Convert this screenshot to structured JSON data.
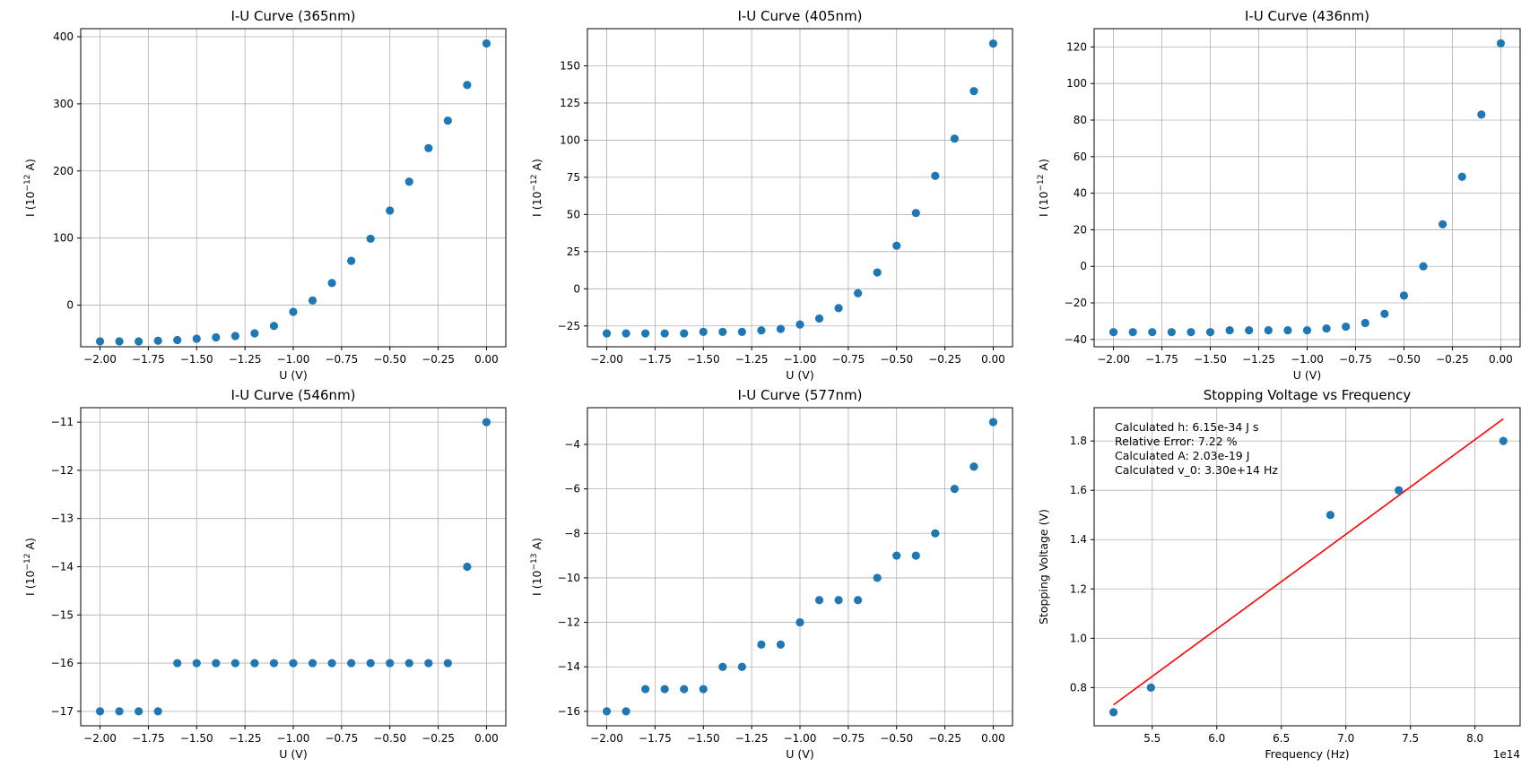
{
  "colors": {
    "points": "#1f77b4",
    "fit_line": "#ff0000",
    "grid": "#b0b0b0",
    "axes": "#000000"
  },
  "chart_data": [
    {
      "type": "scatter",
      "title": "I-U Curve (365nm)",
      "xlabel": "U (V)",
      "ylabel_base": "I (10",
      "ylabel_exp": "−12",
      "ylabel_tail": " A)",
      "xlim": [
        -2.1,
        0.1
      ],
      "ylim": [
        -62,
        412
      ],
      "xticks": [
        -2.0,
        -1.75,
        -1.5,
        -1.25,
        -1.0,
        -0.75,
        -0.5,
        -0.25,
        0.0
      ],
      "xtick_labels": [
        "−2.00",
        "−1.75",
        "−1.50",
        "−1.25",
        "−1.00",
        "−0.75",
        "−0.50",
        "−0.25",
        "0.00"
      ],
      "yticks": [
        0,
        100,
        200,
        300,
        400
      ],
      "ytick_labels": [
        "0",
        "100",
        "200",
        "300",
        "400"
      ],
      "grid": true,
      "x": [
        -2.0,
        -1.9,
        -1.8,
        -1.7,
        -1.6,
        -1.5,
        -1.4,
        -1.3,
        -1.2,
        -1.1,
        -1.0,
        -0.9,
        -0.8,
        -0.7,
        -0.6,
        -0.5,
        -0.4,
        -0.3,
        -0.2,
        -0.1,
        0.0
      ],
      "y": [
        -54,
        -54,
        -54,
        -53,
        -52,
        -50,
        -48,
        -46,
        -42,
        -31,
        -10,
        7,
        33,
        66,
        99,
        141,
        184,
        234,
        275,
        328,
        390
      ]
    },
    {
      "type": "scatter",
      "title": "I-U Curve (405nm)",
      "xlabel": "U (V)",
      "ylabel_base": "I (10",
      "ylabel_exp": "−12",
      "ylabel_tail": " A)",
      "xlim": [
        -2.1,
        0.1
      ],
      "ylim": [
        -39,
        175
      ],
      "xticks": [
        -2.0,
        -1.75,
        -1.5,
        -1.25,
        -1.0,
        -0.75,
        -0.5,
        -0.25,
        0.0
      ],
      "xtick_labels": [
        "−2.00",
        "−1.75",
        "−1.50",
        "−1.25",
        "−1.00",
        "−0.75",
        "−0.50",
        "−0.25",
        "0.00"
      ],
      "yticks": [
        -25,
        0,
        25,
        50,
        75,
        100,
        125,
        150
      ],
      "ytick_labels": [
        "−25",
        "0",
        "25",
        "50",
        "75",
        "100",
        "125",
        "150"
      ],
      "grid": true,
      "x": [
        -2.0,
        -1.9,
        -1.8,
        -1.7,
        -1.6,
        -1.5,
        -1.4,
        -1.3,
        -1.2,
        -1.1,
        -1.0,
        -0.9,
        -0.8,
        -0.7,
        -0.6,
        -0.5,
        -0.4,
        -0.3,
        -0.2,
        -0.1,
        0.0
      ],
      "y": [
        -30,
        -30,
        -30,
        -30,
        -30,
        -29,
        -29,
        -29,
        -28,
        -27,
        -24,
        -20,
        -13,
        -3,
        11,
        29,
        51,
        76,
        101,
        133,
        165
      ]
    },
    {
      "type": "scatter",
      "title": "I-U Curve (436nm)",
      "xlabel": "U (V)",
      "ylabel_base": "I (10",
      "ylabel_exp": "−12",
      "ylabel_tail": " A)",
      "xlim": [
        -2.1,
        0.1
      ],
      "ylim": [
        -44,
        130
      ],
      "xticks": [
        -2.0,
        -1.75,
        -1.5,
        -1.25,
        -1.0,
        -0.75,
        -0.5,
        -0.25,
        0.0
      ],
      "xtick_labels": [
        "−2.00",
        "−1.75",
        "−1.50",
        "−1.25",
        "−1.00",
        "−0.75",
        "−0.50",
        "−0.25",
        "0.00"
      ],
      "yticks": [
        -40,
        -20,
        0,
        20,
        40,
        60,
        80,
        100,
        120
      ],
      "ytick_labels": [
        "−40",
        "−20",
        "0",
        "20",
        "40",
        "60",
        "80",
        "100",
        "120"
      ],
      "grid": true,
      "x": [
        -2.0,
        -1.9,
        -1.8,
        -1.7,
        -1.6,
        -1.5,
        -1.4,
        -1.3,
        -1.2,
        -1.1,
        -1.0,
        -0.9,
        -0.8,
        -0.7,
        -0.6,
        -0.5,
        -0.4,
        -0.3,
        -0.2,
        -0.1,
        0.0
      ],
      "y": [
        -36,
        -36,
        -36,
        -36,
        -36,
        -36,
        -35,
        -35,
        -35,
        -35,
        -35,
        -34,
        -33,
        -31,
        -26,
        -16,
        0,
        23,
        49,
        83,
        122
      ]
    },
    {
      "type": "scatter",
      "title": "I-U Curve (546nm)",
      "xlabel": "U (V)",
      "ylabel_base": "I (10",
      "ylabel_exp": "−12",
      "ylabel_tail": " A)",
      "xlim": [
        -2.1,
        0.1
      ],
      "ylim": [
        -17.3,
        -10.7
      ],
      "xticks": [
        -2.0,
        -1.75,
        -1.5,
        -1.25,
        -1.0,
        -0.75,
        -0.5,
        -0.25,
        0.0
      ],
      "xtick_labels": [
        "−2.00",
        "−1.75",
        "−1.50",
        "−1.25",
        "−1.00",
        "−0.75",
        "−0.50",
        "−0.25",
        "0.00"
      ],
      "yticks": [
        -17,
        -16,
        -15,
        -14,
        -13,
        -12,
        -11
      ],
      "ytick_labels": [
        "−17",
        "−16",
        "−15",
        "−14",
        "−13",
        "−12",
        "−11"
      ],
      "grid": true,
      "x": [
        -2.0,
        -1.9,
        -1.8,
        -1.7,
        -1.6,
        -1.5,
        -1.4,
        -1.3,
        -1.2,
        -1.1,
        -1.0,
        -0.9,
        -0.8,
        -0.7,
        -0.6,
        -0.5,
        -0.4,
        -0.3,
        -0.2,
        -0.1,
        0.0
      ],
      "y": [
        -17,
        -17,
        -17,
        -17,
        -16,
        -16,
        -16,
        -16,
        -16,
        -16,
        -16,
        -16,
        -16,
        -16,
        -16,
        -16,
        -16,
        -16,
        -16,
        -14,
        -11
      ]
    },
    {
      "type": "scatter",
      "title": "I-U Curve (577nm)",
      "xlabel": "U (V)",
      "ylabel_base": "I (10",
      "ylabel_exp": "−13",
      "ylabel_tail": " A)",
      "xlim": [
        -2.1,
        0.1
      ],
      "ylim": [
        -16.65,
        -2.35
      ],
      "xticks": [
        -2.0,
        -1.75,
        -1.5,
        -1.25,
        -1.0,
        -0.75,
        -0.5,
        -0.25,
        0.0
      ],
      "xtick_labels": [
        "−2.00",
        "−1.75",
        "−1.50",
        "−1.25",
        "−1.00",
        "−0.75",
        "−0.50",
        "−0.25",
        "0.00"
      ],
      "yticks": [
        -16,
        -14,
        -12,
        -10,
        -8,
        -6,
        -4
      ],
      "ytick_labels": [
        "−16",
        "−14",
        "−12",
        "−10",
        "−8",
        "−6",
        "−4"
      ],
      "grid": true,
      "x": [
        -2.0,
        -1.9,
        -1.8,
        -1.7,
        -1.6,
        -1.5,
        -1.4,
        -1.3,
        -1.2,
        -1.1,
        -1.0,
        -0.9,
        -0.8,
        -0.7,
        -0.6,
        -0.5,
        -0.4,
        -0.3,
        -0.2,
        -0.1,
        0.0
      ],
      "y": [
        -16,
        -16,
        -15,
        -15,
        -15,
        -15,
        -14,
        -14,
        -13,
        -13,
        -12,
        -11,
        -11,
        -11,
        -10,
        -9,
        -9,
        -8,
        -6,
        -5,
        -3
      ]
    },
    {
      "type": "scatter",
      "title": "Stopping Voltage vs Frequency",
      "xlabel": "Frequency (Hz)",
      "ylabel": "Stopping Voltage (V)",
      "offset_text": "1e14",
      "xlim": [
        5.05,
        8.35
      ],
      "ylim": [
        0.645,
        1.935
      ],
      "xticks": [
        5.5,
        6.0,
        6.5,
        7.0,
        7.5,
        8.0
      ],
      "xtick_labels": [
        "5.5",
        "6.0",
        "6.5",
        "7.0",
        "7.5",
        "8.0"
      ],
      "yticks": [
        0.8,
        1.0,
        1.2,
        1.4,
        1.6,
        1.8
      ],
      "ytick_labels": [
        "0.8",
        "1.0",
        "1.2",
        "1.4",
        "1.6",
        "1.8"
      ],
      "grid": true,
      "x": [
        5.2,
        5.49,
        6.88,
        7.41,
        8.22
      ],
      "y": [
        0.7,
        0.8,
        1.5,
        1.6,
        1.8
      ],
      "fit_line": {
        "x": [
          5.2,
          8.22
        ],
        "y": [
          0.73,
          1.89
        ]
      },
      "annotations": [
        "Calculated h: 6.15e-34 J s",
        "Relative Error: 7.22 %",
        "Calculated A: 2.03e-19 J",
        "Calculated v_0: 3.30e+14 Hz"
      ]
    }
  ]
}
